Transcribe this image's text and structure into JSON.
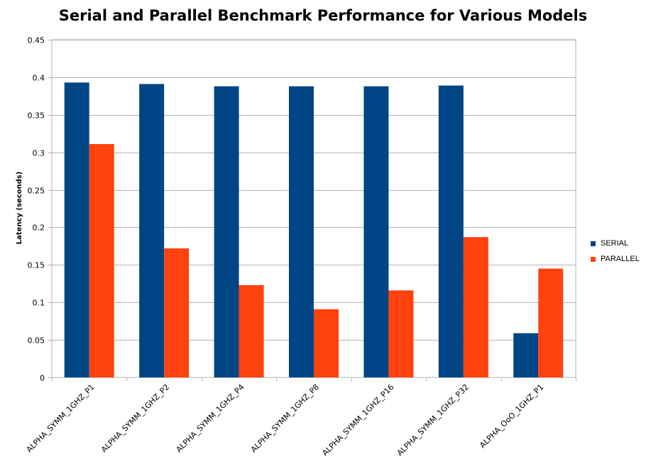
{
  "chart_data": {
    "type": "bar",
    "title": "Serial and Parallel Benchmark Performance for Various Models",
    "xlabel": "",
    "ylabel": "Latency (seconds)",
    "ylim": [
      0,
      0.45
    ],
    "yticks": [
      "0",
      "0.05",
      "0.1",
      "0.15",
      "0.2",
      "0.25",
      "0.3",
      "0.35",
      "0.4",
      "0.45"
    ],
    "grid": true,
    "legend_position": "right",
    "categories": [
      "ALPHA_SYMM_1GHZ_P1",
      "ALPHA_SYMM_1GHZ_P2",
      "ALPHA_SYMM_1GHZ_P4",
      "ALPHA_SYMM_1GHZ_P8",
      "ALPHA_SYMM_1GHZ_P16",
      "ALPHA_SYMM_1GHZ_P32",
      "ALPHA_OoO_1GHZ_P1"
    ],
    "series": [
      {
        "name": "SERIAL",
        "color": "#004586",
        "values": [
          0.393,
          0.391,
          0.388,
          0.388,
          0.388,
          0.389,
          0.059
        ]
      },
      {
        "name": "PARALLEL",
        "color": "#ff420e",
        "values": [
          0.311,
          0.172,
          0.123,
          0.091,
          0.116,
          0.187,
          0.145
        ]
      }
    ]
  }
}
